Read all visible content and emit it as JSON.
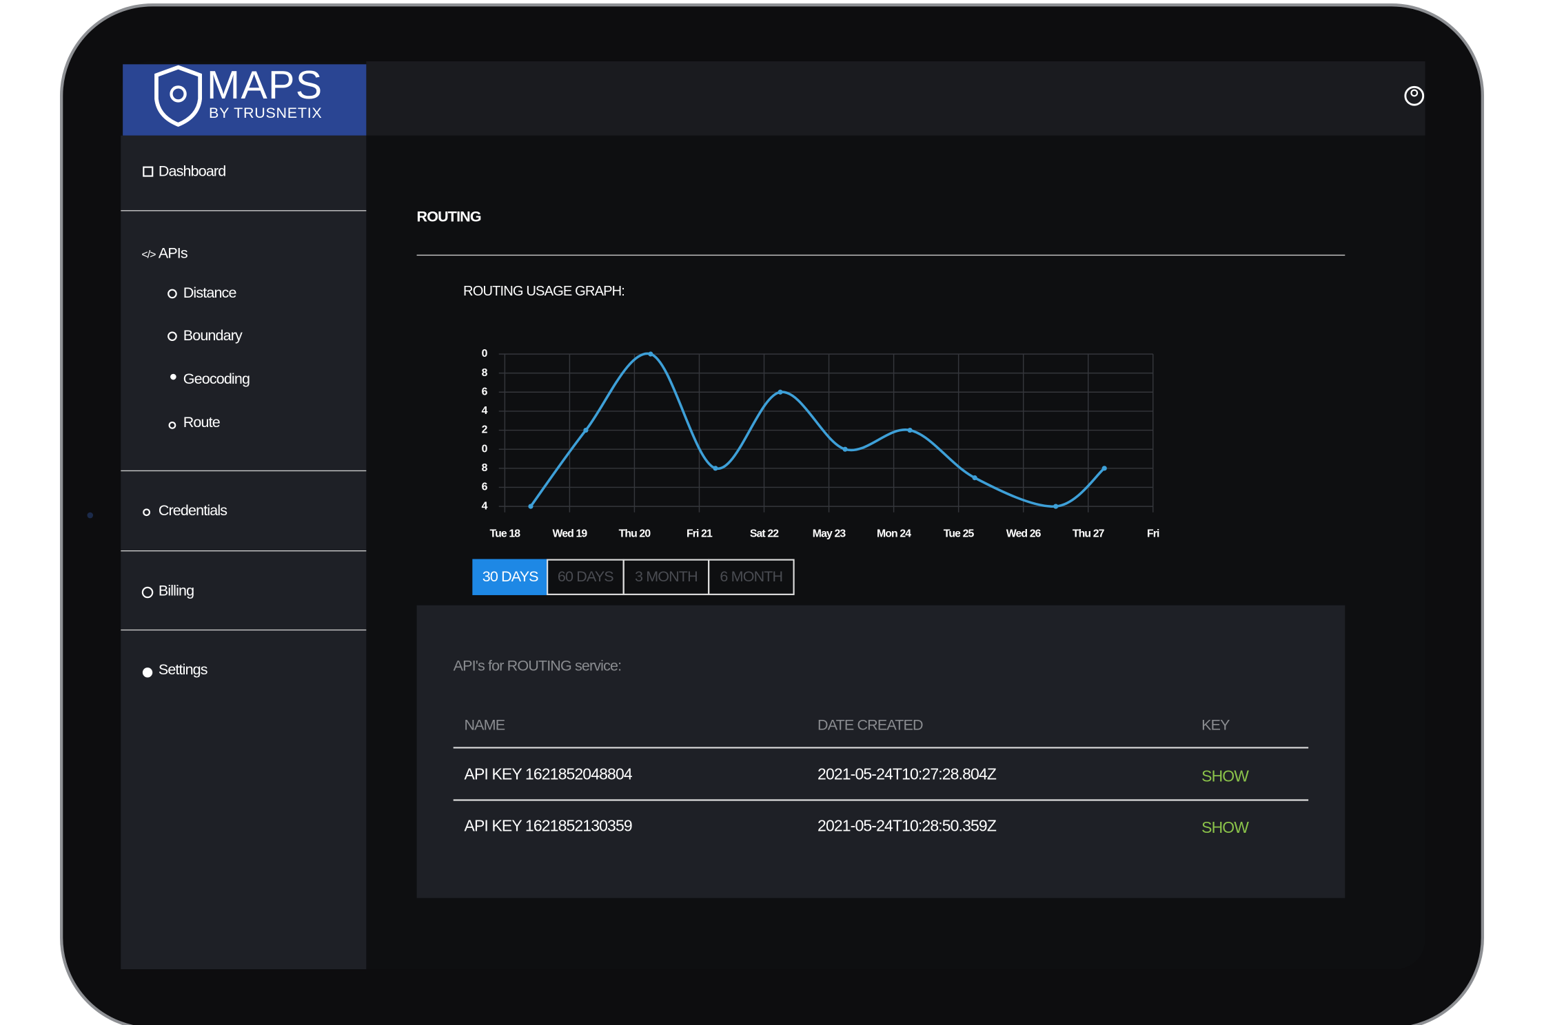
{
  "logo": {
    "title": "MAPS",
    "subtitle": "BY TRUSNETIX"
  },
  "nav": {
    "dashboard": "Dashboard",
    "apis": "APIs",
    "api_items": [
      "Distance",
      "Boundary",
      "Geocoding",
      "Route"
    ],
    "credentials": "Credentials",
    "billing": "Billing",
    "settings": "Settings"
  },
  "page_title": "ROUTING",
  "chart_data": {
    "type": "line",
    "title": "ROUTING USAGE GRAPH:",
    "x": [
      18.4,
      19.25,
      20.25,
      21.25,
      22.25,
      23.25,
      24.25,
      25.25,
      26.5,
      27.25
    ],
    "values": [
      4,
      12,
      20,
      8,
      16,
      10,
      12,
      7,
      4,
      8
    ],
    "color": "#3ea0d8",
    "grid": true,
    "xlim": [
      18,
      28
    ],
    "xticks": [
      {
        "value": 18,
        "label": "Tue 18"
      },
      {
        "value": 19,
        "label": "Wed 19"
      },
      {
        "value": 20,
        "label": "Thu 20"
      },
      {
        "value": 21,
        "label": "Fri 21"
      },
      {
        "value": 22,
        "label": "Sat 22"
      },
      {
        "value": 23,
        "label": "May 23"
      },
      {
        "value": 24,
        "label": "Mon 24"
      },
      {
        "value": 25,
        "label": "Tue 25"
      },
      {
        "value": 26,
        "label": "Wed 26"
      },
      {
        "value": 27,
        "label": "Thu 27"
      },
      {
        "value": 28,
        "label": "Fri"
      }
    ],
    "ylim": [
      4,
      20
    ],
    "yticks": [
      4,
      6,
      8,
      {
        "value": 10,
        "label": "0"
      },
      {
        "value": 12,
        "label": "2"
      },
      {
        "value": 14,
        "label": "4"
      },
      {
        "value": 16,
        "label": "6"
      },
      {
        "value": 18,
        "label": "8"
      },
      {
        "value": 20,
        "label": "0"
      }
    ]
  },
  "range_buttons": [
    "30 DAYS",
    "60 DAYS",
    "3 MONTH",
    "6 MONTH"
  ],
  "table": {
    "caption": "API's for ROUTING service:",
    "columns": [
      "NAME",
      "DATE CREATED",
      "KEY"
    ],
    "rows": [
      [
        "API KEY 1621852048804",
        "2021-05-24T10:27:28.804Z",
        "SHOW"
      ],
      [
        "API KEY 1621852130359",
        "2021-05-24T10:28:50.359Z",
        "SHOW"
      ]
    ]
  }
}
